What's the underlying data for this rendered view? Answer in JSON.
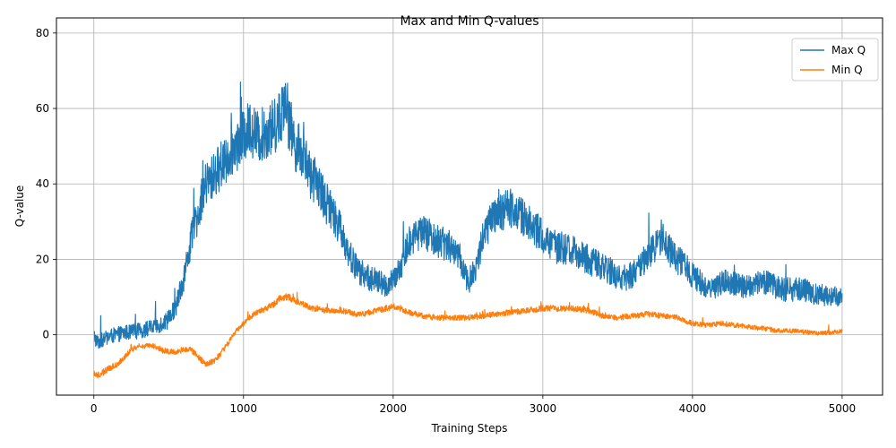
{
  "chart_data": {
    "type": "line",
    "title": "Max and Min Q-values",
    "xlabel": "Training Steps",
    "ylabel": "Q-value",
    "xlim": [
      -250,
      5270
    ],
    "ylim": [
      -16,
      84
    ],
    "xticks": [
      0,
      1000,
      2000,
      3000,
      4000,
      5000
    ],
    "yticks": [
      0,
      20,
      40,
      60,
      80
    ],
    "grid": true,
    "legend": "top-right",
    "series": [
      {
        "name": "Max Q",
        "color": "#1f77b4",
        "noise": 4,
        "x": [
          0,
          20,
          60,
          100,
          150,
          200,
          300,
          400,
          500,
          550,
          600,
          650,
          700,
          750,
          800,
          850,
          900,
          950,
          1000,
          1050,
          1100,
          1150,
          1200,
          1250,
          1280,
          1300,
          1350,
          1400,
          1450,
          1500,
          1550,
          1600,
          1650,
          1700,
          1750,
          1800,
          1850,
          1900,
          1950,
          2000,
          2050,
          2100,
          2150,
          2200,
          2250,
          2300,
          2350,
          2400,
          2450,
          2500,
          2550,
          2600,
          2650,
          2700,
          2750,
          2800,
          2850,
          2900,
          2950,
          3000,
          3050,
          3100,
          3150,
          3200,
          3250,
          3300,
          3350,
          3400,
          3450,
          3500,
          3550,
          3600,
          3650,
          3700,
          3750,
          3800,
          3850,
          3900,
          3950,
          4000,
          4050,
          4100,
          4150,
          4200,
          4250,
          4300,
          4350,
          4400,
          4450,
          4500,
          4550,
          4600,
          4650,
          4700,
          4750,
          4800,
          4850,
          4900,
          4950,
          5000
        ],
        "values": [
          0,
          -2,
          -1.5,
          -0.5,
          0,
          0.5,
          1,
          2,
          4,
          8,
          15,
          25,
          33,
          40,
          42,
          45,
          48,
          50,
          53,
          55,
          52,
          54,
          55,
          58,
          65,
          57,
          50,
          48,
          42,
          40,
          35,
          32,
          28,
          22,
          18,
          16,
          15,
          14,
          13,
          14,
          18,
          24,
          27,
          27,
          26,
          25,
          24,
          23,
          20,
          14,
          17,
          26,
          30,
          32,
          33,
          34,
          32,
          30,
          28,
          26,
          24,
          23,
          23,
          22,
          21,
          20,
          19,
          18,
          17,
          15,
          15,
          16,
          18,
          21,
          23,
          27,
          22,
          20,
          18,
          16,
          14,
          13,
          13,
          14,
          14,
          13,
          13,
          13,
          14,
          14,
          13,
          12,
          12,
          12,
          12,
          11,
          11,
          10,
          10,
          10.5
        ]
      },
      {
        "name": "Min Q",
        "color": "#ff7f0e",
        "noise": 1.2,
        "x": [
          0,
          20,
          60,
          100,
          150,
          200,
          250,
          300,
          350,
          400,
          450,
          500,
          550,
          600,
          650,
          700,
          750,
          800,
          850,
          900,
          950,
          1000,
          1050,
          1100,
          1150,
          1200,
          1250,
          1300,
          1350,
          1400,
          1450,
          1500,
          1550,
          1600,
          1650,
          1700,
          1750,
          1800,
          1850,
          1900,
          1950,
          2000,
          2050,
          2100,
          2200,
          2300,
          2400,
          2500,
          2600,
          2700,
          2800,
          2900,
          3000,
          3100,
          3200,
          3300,
          3400,
          3500,
          3600,
          3700,
          3800,
          3900,
          4000,
          4100,
          4200,
          4300,
          4400,
          4500,
          4600,
          4700,
          4800,
          4900,
          5000
        ],
        "values": [
          -10,
          -11,
          -10,
          -9,
          -8,
          -6,
          -4,
          -3,
          -3,
          -3,
          -4,
          -4.5,
          -4.5,
          -4,
          -4,
          -6,
          -8,
          -7,
          -5,
          -2,
          1,
          3,
          5,
          6,
          7,
          8,
          10,
          10,
          9,
          8,
          7,
          7,
          6.5,
          6.5,
          6.5,
          6,
          5.5,
          5.5,
          6,
          6.5,
          7,
          7.5,
          7,
          6,
          5,
          4.5,
          4.5,
          4.5,
          5,
          5.5,
          6,
          6.5,
          7,
          7,
          7,
          6.5,
          5,
          4.5,
          5,
          5.5,
          5,
          4.5,
          3,
          2.5,
          3,
          2.5,
          2,
          1.5,
          1,
          1,
          0.5,
          0.5,
          1
        ]
      }
    ]
  }
}
